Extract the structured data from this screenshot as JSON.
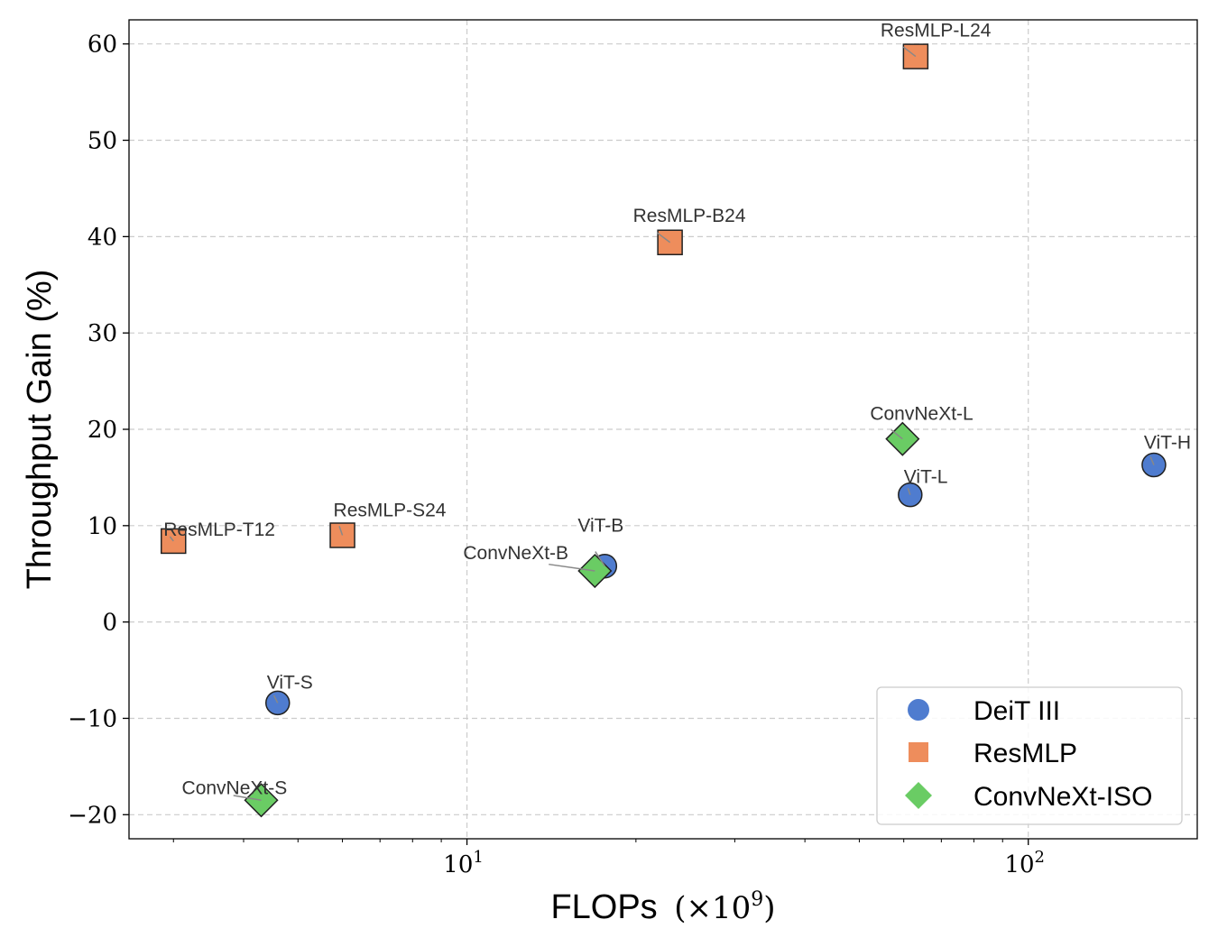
{
  "chart_data": {
    "type": "scatter",
    "xlabel": "FLOPs",
    "xlabel_suffix": "(×10",
    "xlabel_exp": "9",
    "xlabel_close": ")",
    "ylabel": "Throughput Gain (%)",
    "x_scale": "log",
    "xlim": [
      2.5,
      200
    ],
    "ylim": [
      -22.5,
      62.5
    ],
    "x_ticks": [
      {
        "value": 10,
        "base": "10",
        "exp": "1"
      },
      {
        "value": 100,
        "base": "10",
        "exp": "2"
      }
    ],
    "y_ticks": [
      60,
      50,
      40,
      30,
      20,
      10,
      0,
      -10,
      -20
    ],
    "y_tick_labels": [
      "60",
      "50",
      "40",
      "30",
      "20",
      "10",
      "0",
      "−10",
      "−20"
    ],
    "grid": true,
    "legend_position": "bottom-right",
    "series": [
      {
        "name": "DeiT III",
        "color": "#4f7ccf",
        "marker": "circle",
        "points": [
          {
            "label": "ViT-S",
            "x": 4.6,
            "y": -8.4
          },
          {
            "label": "ViT-B",
            "x": 17.6,
            "y": 5.8
          },
          {
            "label": "ViT-L",
            "x": 61.6,
            "y": 13.2
          },
          {
            "label": "ViT-H",
            "x": 167.4,
            "y": 16.3
          }
        ]
      },
      {
        "name": "ResMLP",
        "color": "#ee8d5c",
        "marker": "square",
        "points": [
          {
            "label": "ResMLP-T12",
            "x": 3.0,
            "y": 8.4
          },
          {
            "label": "ResMLP-S24",
            "x": 6.0,
            "y": 9.0
          },
          {
            "label": "ResMLP-B24",
            "x": 23.0,
            "y": 39.4
          },
          {
            "label": "ResMLP-L24",
            "x": 63.0,
            "y": 58.7
          }
        ]
      },
      {
        "name": "ConvNeXt-ISO",
        "color": "#6acc64",
        "marker": "diamond",
        "points": [
          {
            "label": "ConvNeXt-S",
            "x": 4.3,
            "y": -18.5
          },
          {
            "label": "ConvNeXt-B",
            "x": 16.9,
            "y": 5.3
          },
          {
            "label": "ConvNeXt-L",
            "x": 59.7,
            "y": 19.0
          }
        ]
      }
    ]
  }
}
